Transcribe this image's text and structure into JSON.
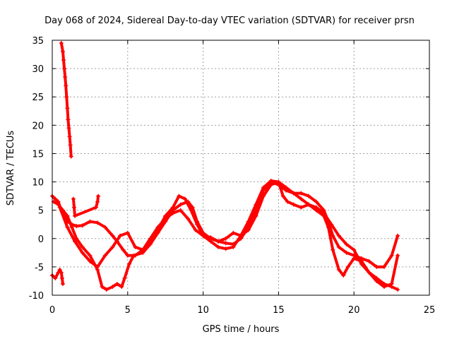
{
  "chart_data": {
    "type": "scatter",
    "title": "Day 068 of 2024, Sidereal Day-to-day VTEC variation (SDTVAR) for receiver prsn",
    "xlabel": "GPS time / hours",
    "ylabel": "SDTVAR / TECUs",
    "xlim": [
      0,
      25
    ],
    "ylim": [
      -10,
      35
    ],
    "xticks": [
      0,
      5,
      10,
      15,
      20,
      25
    ],
    "yticks": [
      -10,
      -5,
      0,
      5,
      10,
      15,
      20,
      25,
      30,
      35
    ],
    "grid": true,
    "marker": "+",
    "color": "#ff0000",
    "series": [
      {
        "name": "track-1",
        "points": [
          [
            0.0,
            7.5
          ],
          [
            0.2,
            7.0
          ],
          [
            0.4,
            6.5
          ],
          [
            0.6,
            5.0
          ],
          [
            0.8,
            4.0
          ],
          [
            1.0,
            3.0
          ],
          [
            1.3,
            2.5
          ],
          [
            1.6,
            2.2
          ],
          [
            2.0,
            2.3
          ],
          [
            2.5,
            3.0
          ],
          [
            3.0,
            2.8
          ],
          [
            3.5,
            2.0
          ],
          [
            4.0,
            0.5
          ],
          [
            4.3,
            -0.5
          ],
          [
            4.7,
            -2.0
          ],
          [
            5.0,
            -3.0
          ],
          [
            5.5,
            -3.0
          ],
          [
            6.0,
            -2.0
          ],
          [
            6.5,
            0.0
          ],
          [
            7.0,
            2.0
          ],
          [
            7.5,
            3.5
          ],
          [
            8.0,
            4.5
          ],
          [
            8.5,
            5.0
          ],
          [
            9.0,
            3.5
          ],
          [
            9.5,
            1.5
          ],
          [
            10.0,
            0.5
          ],
          [
            10.5,
            0.2
          ],
          [
            11.0,
            -0.5
          ],
          [
            11.5,
            -0.8
          ],
          [
            12.0,
            -1.0
          ],
          [
            12.5,
            0.0
          ],
          [
            13.0,
            2.0
          ],
          [
            13.5,
            5.0
          ],
          [
            14.0,
            8.5
          ],
          [
            14.5,
            10.0
          ],
          [
            15.0,
            9.5
          ],
          [
            15.5,
            8.5
          ],
          [
            16.0,
            8.0
          ],
          [
            16.5,
            8.0
          ],
          [
            17.0,
            7.5
          ],
          [
            17.5,
            6.5
          ],
          [
            18.0,
            5.0
          ],
          [
            18.3,
            3.0
          ],
          [
            18.6,
            0.5
          ],
          [
            19.0,
            -1.5
          ],
          [
            19.5,
            -2.5
          ],
          [
            20.0,
            -3.0
          ],
          [
            20.5,
            -3.5
          ],
          [
            21.0,
            -4.0
          ],
          [
            21.5,
            -5.0
          ],
          [
            22.0,
            -5.0
          ],
          [
            22.5,
            -3.0
          ],
          [
            22.9,
            0.5
          ]
        ]
      },
      {
        "name": "track-2",
        "points": [
          [
            0.1,
            6.5
          ],
          [
            0.4,
            6.0
          ],
          [
            0.7,
            5.0
          ],
          [
            1.0,
            4.0
          ],
          [
            1.3,
            2.0
          ],
          [
            1.6,
            0.0
          ],
          [
            2.0,
            -1.5
          ],
          [
            2.5,
            -3.0
          ],
          [
            3.0,
            -5.5
          ],
          [
            3.3,
            -8.5
          ],
          [
            3.6,
            -9.0
          ],
          [
            4.0,
            -8.5
          ],
          [
            4.3,
            -8.0
          ],
          [
            4.6,
            -8.5
          ],
          [
            4.8,
            -7.0
          ],
          [
            5.1,
            -4.5
          ],
          [
            5.4,
            -3.0
          ],
          [
            6.0,
            -2.5
          ],
          [
            6.5,
            -1.0
          ],
          [
            7.0,
            1.0
          ],
          [
            7.5,
            3.0
          ],
          [
            8.0,
            5.0
          ],
          [
            8.5,
            6.0
          ],
          [
            9.0,
            6.5
          ],
          [
            9.3,
            5.5
          ],
          [
            9.6,
            3.0
          ],
          [
            10.0,
            1.0
          ],
          [
            10.5,
            0.0
          ],
          [
            11.0,
            -0.5
          ],
          [
            11.5,
            0.0
          ],
          [
            12.0,
            1.0
          ],
          [
            12.5,
            0.5
          ],
          [
            13.0,
            1.5
          ],
          [
            13.5,
            4.0
          ],
          [
            14.0,
            7.5
          ],
          [
            14.5,
            9.5
          ],
          [
            15.0,
            10.0
          ],
          [
            15.5,
            9.0
          ],
          [
            16.0,
            8.0
          ],
          [
            16.5,
            7.0
          ],
          [
            17.0,
            6.0
          ],
          [
            17.5,
            5.0
          ],
          [
            18.0,
            4.0
          ],
          [
            18.3,
            2.0
          ],
          [
            18.6,
            -2.0
          ],
          [
            19.0,
            -5.5
          ],
          [
            19.3,
            -6.5
          ],
          [
            19.6,
            -5.0
          ],
          [
            20.0,
            -3.5
          ],
          [
            20.5,
            -4.0
          ],
          [
            21.0,
            -6.0
          ],
          [
            21.5,
            -7.5
          ],
          [
            22.0,
            -8.5
          ],
          [
            22.5,
            -8.0
          ],
          [
            22.9,
            -3.0
          ]
        ]
      },
      {
        "name": "track-3",
        "points": [
          [
            0.5,
            5.5
          ],
          [
            1.0,
            2.0
          ],
          [
            1.5,
            -0.5
          ],
          [
            2.0,
            -2.5
          ],
          [
            2.5,
            -4.0
          ],
          [
            3.0,
            -5.0
          ],
          [
            3.5,
            -3.0
          ],
          [
            4.0,
            -1.5
          ],
          [
            4.5,
            0.5
          ],
          [
            5.0,
            1.0
          ],
          [
            5.5,
            -1.5
          ],
          [
            6.0,
            -2.0
          ],
          [
            6.5,
            -0.5
          ],
          [
            7.0,
            1.5
          ],
          [
            7.5,
            4.0
          ],
          [
            8.0,
            5.5
          ],
          [
            8.4,
            7.5
          ],
          [
            8.8,
            7.0
          ],
          [
            9.2,
            5.0
          ],
          [
            9.6,
            2.5
          ],
          [
            10.0,
            0.5
          ],
          [
            10.5,
            -0.5
          ],
          [
            11.0,
            -1.5
          ],
          [
            11.5,
            -1.8
          ],
          [
            12.0,
            -1.5
          ],
          [
            12.5,
            0.5
          ],
          [
            13.0,
            3.0
          ],
          [
            13.5,
            6.0
          ],
          [
            14.0,
            9.0
          ],
          [
            14.5,
            10.2
          ],
          [
            15.0,
            10.0
          ],
          [
            15.3,
            7.5
          ],
          [
            15.6,
            6.5
          ],
          [
            16.0,
            6.0
          ],
          [
            16.5,
            5.5
          ],
          [
            17.0,
            6.0
          ],
          [
            17.5,
            5.5
          ],
          [
            18.0,
            4.5
          ],
          [
            18.5,
            2.5
          ],
          [
            19.0,
            0.5
          ],
          [
            19.5,
            -1.0
          ],
          [
            20.0,
            -2.0
          ],
          [
            20.5,
            -4.5
          ],
          [
            21.0,
            -6.0
          ],
          [
            21.5,
            -7.0
          ],
          [
            22.0,
            -8.0
          ],
          [
            22.5,
            -8.5
          ],
          [
            22.9,
            -9.0
          ]
        ]
      },
      {
        "name": "track-4",
        "points": [
          [
            0.6,
            34.5
          ],
          [
            0.7,
            33.0
          ],
          [
            0.75,
            31.5
          ],
          [
            0.8,
            30.0
          ],
          [
            0.85,
            28.5
          ],
          [
            0.9,
            27.0
          ],
          [
            0.95,
            25.0
          ],
          [
            1.0,
            23.0
          ],
          [
            1.05,
            21.0
          ],
          [
            1.1,
            19.5
          ],
          [
            1.15,
            18.0
          ],
          [
            1.2,
            16.5
          ],
          [
            1.25,
            14.5
          ]
        ]
      },
      {
        "name": "track-5",
        "points": [
          [
            0.0,
            -6.5
          ],
          [
            0.2,
            -7.0
          ],
          [
            0.4,
            -6.0
          ],
          [
            0.5,
            -5.5
          ],
          [
            0.6,
            -6.0
          ],
          [
            0.65,
            -7.0
          ],
          [
            0.7,
            -8.0
          ]
        ]
      },
      {
        "name": "track-6",
        "points": [
          [
            1.4,
            7.0
          ],
          [
            1.45,
            5.5
          ],
          [
            1.5,
            4.0
          ],
          [
            2.9,
            5.5
          ],
          [
            3.0,
            6.5
          ],
          [
            3.05,
            7.5
          ]
        ]
      }
    ]
  }
}
